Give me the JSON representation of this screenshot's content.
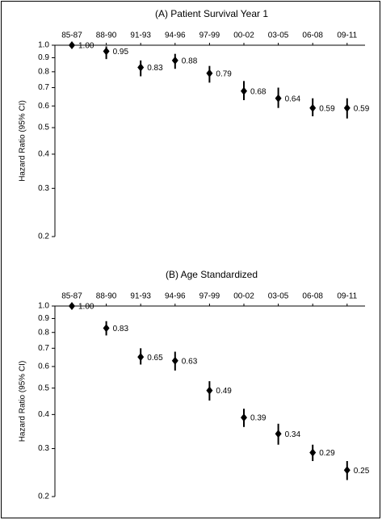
{
  "chart_data": [
    {
      "type": "errorbar",
      "title": "(A) Patient Survival Year 1",
      "y_label": "Hazard Ratio (95%  CI)",
      "log_scale": true,
      "color": "#000000",
      "categories": [
        "85-87",
        "88-90",
        "91-93",
        "94-96",
        "97-99",
        "00-02",
        "03-05",
        "06-08",
        "09-11"
      ],
      "values": [
        1,
        0.95,
        0.83,
        0.88,
        0.79,
        0.68,
        0.64,
        0.59,
        0.59
      ],
      "value_labels": [
        "1.00",
        "0.95",
        "0.83",
        "0.88",
        "0.79",
        "0.68",
        "0.64",
        "0.59",
        "0.59"
      ],
      "lower": [
        1,
        0.89,
        0.77,
        0.82,
        0.73,
        0.63,
        0.59,
        0.55,
        0.54
      ],
      "upper": [
        1,
        0.99,
        0.88,
        0.93,
        0.84,
        0.74,
        0.7,
        0.64,
        0.64
      ],
      "ylim": [
        0.2,
        1
      ],
      "yticks": [
        0.2,
        0.3,
        0.4,
        0.5,
        0.6,
        0.7,
        0.8,
        0.9,
        {
          "value": 1,
          "label": "1.0"
        }
      ]
    },
    {
      "type": "errorbar",
      "title": "(B) Age Standardized",
      "y_label": "Hazard Ratio (95%  CI)",
      "log_scale": true,
      "color": "#000000",
      "categories": [
        "85-87",
        "88-90",
        "91-93",
        "94-96",
        "97-99",
        "00-02",
        "03-05",
        "06-08",
        "09-11"
      ],
      "values": [
        1,
        0.83,
        0.65,
        0.63,
        0.49,
        0.39,
        0.34,
        0.29,
        0.25
      ],
      "value_labels": [
        "1.00",
        "0.83",
        "0.65",
        "0.63",
        "0.49",
        "0.39",
        "0.34",
        "0.29",
        "0.25"
      ],
      "lower": [
        1,
        0.78,
        0.61,
        0.58,
        0.45,
        0.36,
        0.31,
        0.27,
        0.23
      ],
      "upper": [
        1,
        0.88,
        0.7,
        0.68,
        0.53,
        0.42,
        0.37,
        0.31,
        0.27
      ],
      "ylim": [
        0.2,
        1
      ],
      "yticks": [
        0.2,
        0.3,
        0.4,
        0.5,
        0.6,
        0.7,
        0.8,
        0.9,
        {
          "value": 1,
          "label": "1.0"
        }
      ]
    }
  ]
}
